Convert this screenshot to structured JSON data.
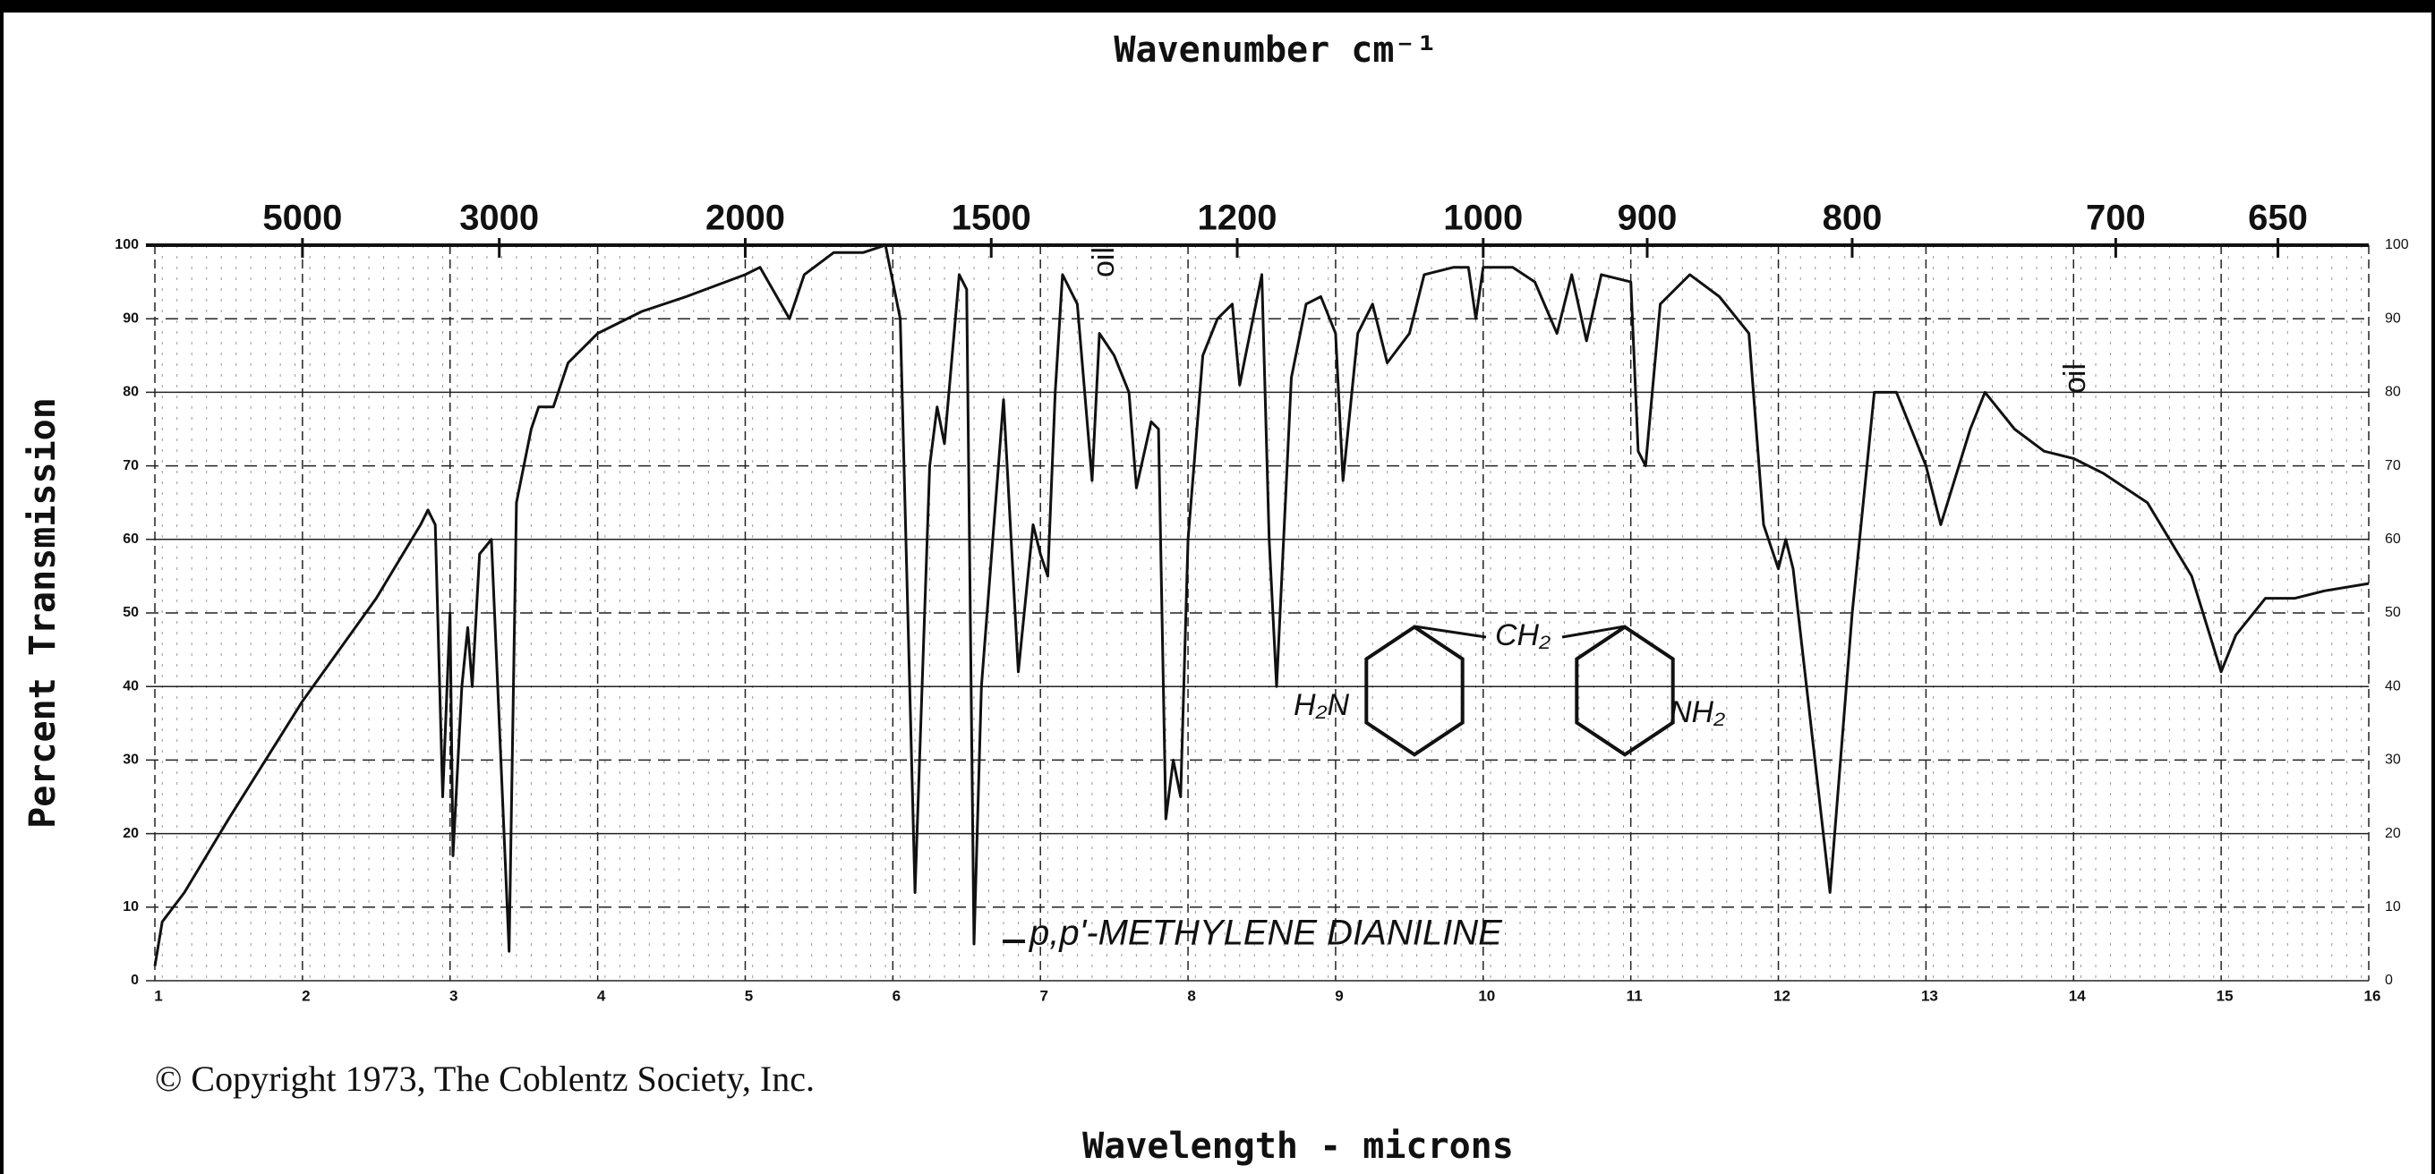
{
  "chart_data": {
    "type": "line",
    "title": "Wavenumber cm⁻¹",
    "xlabel": "Wavelength - microns",
    "ylabel": "Percent Transmission",
    "copyright": "© Copyright 1973, The Coblentz Society, Inc.",
    "annotations": [
      "oil",
      "oil",
      "p,p'-METHYLENE DIANILINE",
      "H₂N",
      "CH₂",
      "NH₂"
    ],
    "color": "#111111",
    "grid": true,
    "xlim": [
      1,
      16
    ],
    "ylim": [
      0,
      100
    ],
    "xticks": [
      1,
      2,
      3,
      4,
      5,
      6,
      7,
      8,
      9,
      10,
      11,
      12,
      13,
      14,
      15,
      16
    ],
    "yticks": [
      0,
      10,
      20,
      30,
      40,
      50,
      60,
      70,
      80,
      90,
      100
    ],
    "x2ticks": [
      5000,
      3000,
      2000,
      1500,
      1200,
      1000,
      900,
      800,
      700,
      650
    ],
    "x": [
      1.0,
      1.05,
      1.2,
      1.5,
      2,
      2.5,
      2.8,
      2.85,
      2.9,
      2.95,
      3.0,
      3.02,
      3.08,
      3.12,
      3.15,
      3.2,
      3.28,
      3.4,
      3.45,
      3.55,
      3.6,
      3.7,
      3.8,
      4.0,
      4.3,
      4.6,
      5.0,
      5.1,
      5.3,
      5.4,
      5.6,
      5.8,
      5.95,
      6.05,
      6.15,
      6.25,
      6.3,
      6.35,
      6.45,
      6.5,
      6.55,
      6.6,
      6.75,
      6.85,
      6.95,
      7.0,
      7.05,
      7.1,
      7.15,
      7.25,
      7.35,
      7.4,
      7.5,
      7.6,
      7.65,
      7.75,
      7.8,
      7.85,
      7.9,
      7.95,
      8.0,
      8.1,
      8.2,
      8.3,
      8.35,
      8.4,
      8.5,
      8.55,
      8.6,
      8.7,
      8.8,
      8.9,
      9.0,
      9.05,
      9.15,
      9.25,
      9.35,
      9.5,
      9.6,
      9.8,
      9.9,
      9.95,
      10.0,
      10.2,
      10.35,
      10.5,
      10.6,
      10.7,
      10.8,
      11.0,
      11.05,
      11.1,
      11.2,
      11.4,
      11.6,
      11.8,
      11.9,
      12.0,
      12.05,
      12.1,
      12.35,
      12.5,
      12.65,
      12.8,
      13.0,
      13.1,
      13.3,
      13.4,
      13.6,
      13.8,
      14.0,
      14.2,
      14.5,
      14.8,
      15.0,
      15.1,
      15.3,
      15.5,
      15.7,
      16.0
    ],
    "values": [
      2,
      8,
      12,
      22,
      38,
      52,
      62,
      64,
      62,
      25,
      50,
      17,
      40,
      48,
      40,
      58,
      60,
      4,
      65,
      75,
      78,
      78,
      84,
      88,
      91,
      93,
      96,
      97,
      90,
      96,
      99,
      99,
      100,
      90,
      12,
      70,
      78,
      73,
      96,
      94,
      5,
      40,
      79,
      42,
      62,
      58,
      55,
      80,
      96,
      92,
      68,
      88,
      85,
      80,
      67,
      76,
      75,
      22,
      30,
      25,
      60,
      85,
      90,
      92,
      81,
      86,
      96,
      60,
      40,
      82,
      92,
      93,
      88,
      68,
      88,
      92,
      84,
      88,
      96,
      97,
      97,
      90,
      97,
      97,
      95,
      88,
      96,
      87,
      96,
      95,
      72,
      70,
      92,
      96,
      93,
      88,
      62,
      56,
      60,
      56,
      12,
      50,
      80,
      80,
      70,
      62,
      75,
      80,
      75,
      72,
      71,
      69,
      65,
      55,
      42,
      47,
      52,
      52,
      53,
      54
    ]
  }
}
